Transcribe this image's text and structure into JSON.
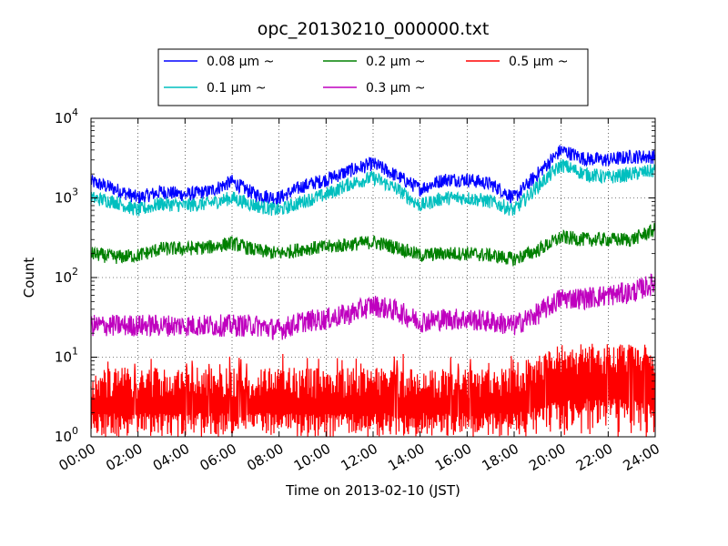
{
  "chart_data": {
    "type": "line",
    "title": "opc_20130210_000000.txt",
    "xlabel": "Time on 2013-02-10 (JST)",
    "ylabel": "Count",
    "y_scale": "log",
    "ylim": [
      1,
      10000
    ],
    "xlim": [
      "00:00",
      "24:00"
    ],
    "x_tick_labels": [
      "00:00",
      "02:00",
      "04:00",
      "06:00",
      "08:00",
      "10:00",
      "12:00",
      "14:00",
      "16:00",
      "18:00",
      "20:00",
      "22:00",
      "24:00"
    ],
    "y_ticks": [
      {
        "base": "10",
        "exp": "0"
      },
      {
        "base": "10",
        "exp": "1"
      },
      {
        "base": "10",
        "exp": "2"
      },
      {
        "base": "10",
        "exp": "3"
      },
      {
        "base": "10",
        "exp": "4"
      }
    ],
    "grid": true,
    "legend_position": "top-center, above plot",
    "series": [
      {
        "name": "0.08 μm ~",
        "color": "#0000ff",
        "x": [
          "00:00",
          "01:00",
          "02:00",
          "03:00",
          "04:00",
          "05:00",
          "06:00",
          "07:00",
          "08:00",
          "09:00",
          "10:00",
          "11:00",
          "12:00",
          "13:00",
          "14:00",
          "15:00",
          "16:00",
          "17:00",
          "18:00",
          "19:00",
          "20:00",
          "21:00",
          "22:00",
          "23:00",
          "24:00"
        ],
        "values": [
          1600,
          1300,
          1000,
          1200,
          1100,
          1200,
          1600,
          1100,
          1000,
          1400,
          1700,
          2200,
          2700,
          1900,
          1300,
          1700,
          1700,
          1500,
          1000,
          2000,
          4000,
          3100,
          3000,
          3300,
          3300
        ]
      },
      {
        "name": "0.1 μm ~",
        "color": "#00bfbf",
        "x": [
          "00:00",
          "01:00",
          "02:00",
          "03:00",
          "04:00",
          "05:00",
          "06:00",
          "07:00",
          "08:00",
          "09:00",
          "10:00",
          "11:00",
          "12:00",
          "13:00",
          "14:00",
          "15:00",
          "16:00",
          "17:00",
          "18:00",
          "19:00",
          "20:00",
          "21:00",
          "22:00",
          "23:00",
          "24:00"
        ],
        "values": [
          1000,
          900,
          700,
          850,
          800,
          850,
          1000,
          800,
          700,
          900,
          1100,
          1500,
          1800,
          1300,
          800,
          1000,
          1000,
          900,
          700,
          1400,
          2600,
          2000,
          1800,
          2000,
          2200
        ]
      },
      {
        "name": "0.2 μm ~",
        "color": "#008000",
        "x": [
          "00:00",
          "01:00",
          "02:00",
          "03:00",
          "04:00",
          "05:00",
          "06:00",
          "07:00",
          "08:00",
          "09:00",
          "10:00",
          "11:00",
          "12:00",
          "13:00",
          "14:00",
          "15:00",
          "16:00",
          "17:00",
          "18:00",
          "19:00",
          "20:00",
          "21:00",
          "22:00",
          "23:00",
          "24:00"
        ],
        "values": [
          200,
          180,
          190,
          230,
          230,
          240,
          270,
          220,
          200,
          230,
          240,
          260,
          280,
          240,
          190,
          200,
          200,
          190,
          170,
          220,
          320,
          300,
          300,
          300,
          400
        ]
      },
      {
        "name": "0.3 μm ~",
        "color": "#bf00bf",
        "x": [
          "00:00",
          "01:00",
          "02:00",
          "03:00",
          "04:00",
          "05:00",
          "06:00",
          "07:00",
          "08:00",
          "09:00",
          "10:00",
          "11:00",
          "12:00",
          "13:00",
          "14:00",
          "15:00",
          "16:00",
          "17:00",
          "18:00",
          "19:00",
          "20:00",
          "21:00",
          "22:00",
          "23:00",
          "24:00"
        ],
        "values": [
          25,
          25,
          25,
          25,
          25,
          25,
          25,
          25,
          22,
          28,
          30,
          35,
          45,
          38,
          28,
          30,
          30,
          28,
          25,
          35,
          55,
          55,
          60,
          65,
          85
        ]
      },
      {
        "name": "0.5 μm ~",
        "color": "#ff0000",
        "x": [
          "00:00",
          "01:00",
          "02:00",
          "03:00",
          "04:00",
          "05:00",
          "06:00",
          "07:00",
          "08:00",
          "09:00",
          "10:00",
          "11:00",
          "12:00",
          "13:00",
          "14:00",
          "15:00",
          "16:00",
          "17:00",
          "18:00",
          "19:00",
          "20:00",
          "21:00",
          "22:00",
          "23:00",
          "24:00"
        ],
        "values": [
          2,
          2,
          2,
          2,
          2,
          2,
          2,
          2,
          2,
          2,
          2,
          2,
          2,
          2,
          2,
          2,
          2,
          2,
          2,
          3,
          4,
          4,
          4,
          4,
          4
        ]
      }
    ]
  }
}
